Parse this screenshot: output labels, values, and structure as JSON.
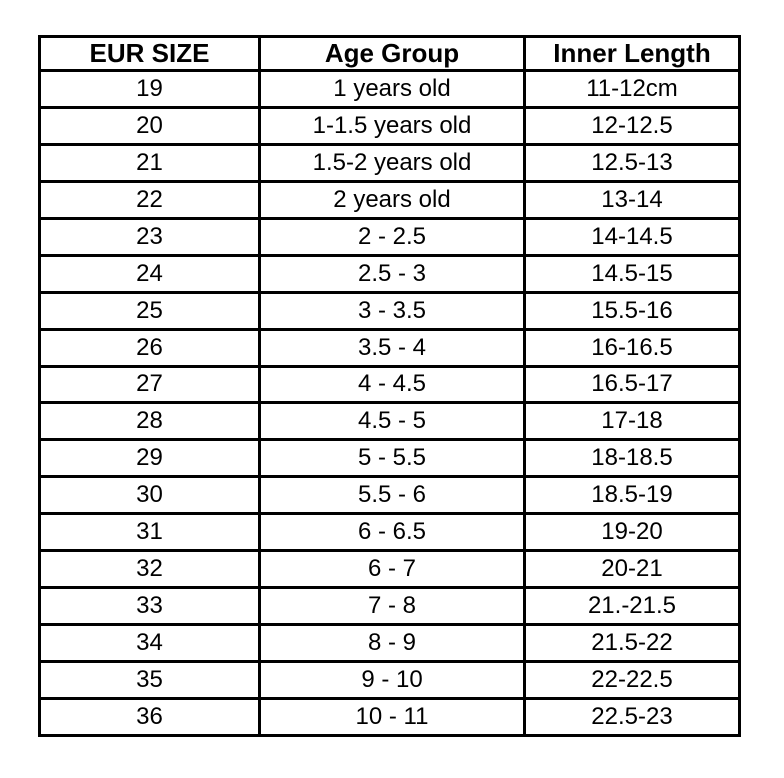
{
  "colors": {
    "border": "#000000",
    "text": "#000000",
    "background": "#ffffff"
  },
  "chart_data": {
    "type": "table",
    "title": "",
    "columns": [
      "EUR SIZE",
      "Age Group",
      "Inner Length"
    ],
    "rows": [
      [
        "19",
        "1 years old",
        "11-12cm"
      ],
      [
        "20",
        "1-1.5 years old",
        "12-12.5"
      ],
      [
        "21",
        "1.5-2 years old",
        "12.5-13"
      ],
      [
        "22",
        "2 years old",
        "13-14"
      ],
      [
        "23",
        "2 - 2.5",
        "14-14.5"
      ],
      [
        "24",
        "2.5 - 3",
        "14.5-15"
      ],
      [
        "25",
        "3 - 3.5",
        "15.5-16"
      ],
      [
        "26",
        "3.5 - 4",
        "16-16.5"
      ],
      [
        "27",
        "4 - 4.5",
        "16.5-17"
      ],
      [
        "28",
        "4.5 - 5",
        "17-18"
      ],
      [
        "29",
        "5 - 5.5",
        "18-18.5"
      ],
      [
        "30",
        "5.5 - 6",
        "18.5-19"
      ],
      [
        "31",
        "6 - 6.5",
        "19-20"
      ],
      [
        "32",
        "6 - 7",
        "20-21"
      ],
      [
        "33",
        "7 - 8",
        "21.-21.5"
      ],
      [
        "34",
        "8 - 9",
        "21.5-22"
      ],
      [
        "35",
        "9 - 10",
        "22-22.5"
      ],
      [
        "36",
        "10 - 11",
        "22.5-23"
      ]
    ]
  }
}
